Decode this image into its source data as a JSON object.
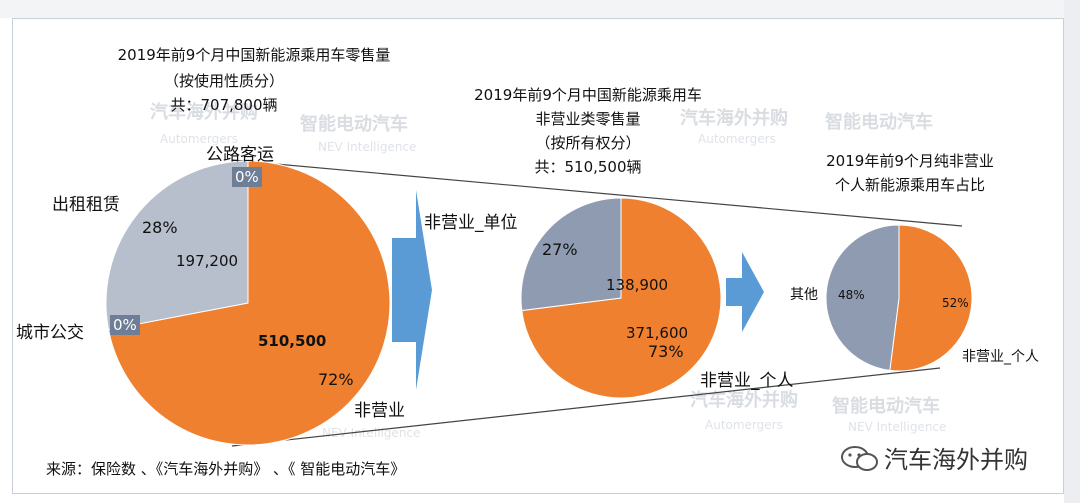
{
  "charts": {
    "main": {
      "title_line1": "2019年前9个月中国新能源乘用车零售量",
      "title_line2": "（按使用性质分）",
      "title_line3": "共：707,800辆"
    },
    "mid": {
      "title_line1": "2019年前9个月中国新能源乘用车",
      "title_line2": "非营业类零售量",
      "title_line3": "（按所有权分）",
      "title_line4": "共：510,500辆"
    },
    "right": {
      "title_line1": "2019年前9个月纯非营业",
      "title_line2": "个人新能源乘用车占比"
    }
  },
  "labels": {
    "public_bus_road": "公路客运",
    "rental": "出租租赁",
    "city_bus": "城市公交",
    "non_operating": "非营业",
    "non_operating_unit": "非营业_单位",
    "non_operating_personal": "非营业_个人",
    "other": "其他",
    "non_operating_personal_right": "非营业_个人"
  },
  "values": {
    "main_zero_top": "0%",
    "main_rental_pct": "28%",
    "main_rental_val": "197,200",
    "main_city_zero": "0%",
    "main_nonop_val": "510,500",
    "main_nonop_pct": "72%",
    "mid_unit_pct": "27%",
    "mid_unit_val": "138,900",
    "mid_personal_val": "371,600",
    "mid_personal_pct": "73%",
    "right_other_pct": "48%",
    "right_personal_pct": "52%"
  },
  "source": "来源：保险数 、《汽车海外并购》 、《 智能电动汽车》",
  "brand": "汽车海外并购",
  "watermarks": {
    "a1": "汽车海外并购",
    "a2": "Automergers",
    "b1": "智能电动汽车",
    "b2": "NEV Intelligence"
  },
  "colors": {
    "orange": "#ee8030",
    "gray_light": "#b7bfcc",
    "gray_mid": "#8e9bb0",
    "arrow": "#5b9bd5",
    "line": "#444444"
  },
  "chart_data": [
    {
      "type": "pie",
      "title": "2019年前9个月中国新能源乘用车零售量（按使用性质分） 共：707,800辆",
      "slices": [
        {
          "name": "非营业",
          "value": 510500,
          "percent": 72
        },
        {
          "name": "出租租赁",
          "value": 197200,
          "percent": 28
        },
        {
          "name": "公路客运",
          "value": 0,
          "percent": 0
        },
        {
          "name": "城市公交",
          "value": 0,
          "percent": 0
        }
      ]
    },
    {
      "type": "pie",
      "title": "2019年前9个月中国新能源乘用车非营业类零售量（按所有权分） 共：510,500辆",
      "slices": [
        {
          "name": "非营业_个人",
          "value": 371600,
          "percent": 73
        },
        {
          "name": "非营业_单位",
          "value": 138900,
          "percent": 27
        }
      ]
    },
    {
      "type": "pie",
      "title": "2019年前9个月纯非营业个人新能源乘用车占比",
      "slices": [
        {
          "name": "非营业_个人",
          "percent": 52
        },
        {
          "name": "其他",
          "percent": 48
        }
      ]
    }
  ]
}
